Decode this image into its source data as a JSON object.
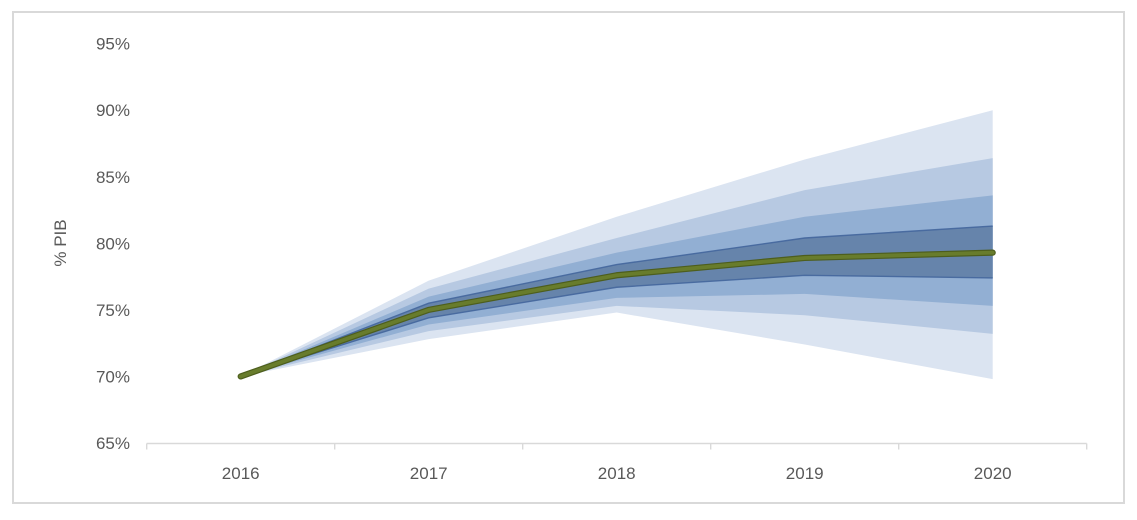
{
  "chart_data": {
    "type": "area",
    "subtype": "fan-chart",
    "title": "",
    "xlabel": "",
    "ylabel": "% PIB",
    "categories": [
      "2016",
      "2017",
      "2018",
      "2019",
      "2020"
    ],
    "ylim": [
      65,
      95
    ],
    "grid": false,
    "legend": "none",
    "yticks": [
      {
        "label": "95%",
        "value": 95
      },
      {
        "label": "90%",
        "value": 90
      },
      {
        "label": "85%",
        "value": 85
      },
      {
        "label": "80%",
        "value": 80
      },
      {
        "label": "75%",
        "value": 75
      },
      {
        "label": "70%",
        "value": 70
      },
      {
        "label": "65%",
        "value": 65
      }
    ],
    "central": {
      "name": "central-projection",
      "values": [
        70.0,
        75.0,
        77.6,
        78.9,
        79.3
      ]
    },
    "bands": [
      {
        "name": "band-outermost",
        "upper": [
          70.0,
          77.2,
          82.0,
          86.3,
          90.0
        ],
        "lower": [
          70.0,
          72.8,
          74.8,
          72.4,
          69.8
        ],
        "color_key": "band_outermost"
      },
      {
        "name": "band-outer",
        "upper": [
          70.0,
          76.6,
          80.4,
          84.0,
          86.4
        ],
        "lower": [
          70.0,
          73.4,
          75.3,
          74.6,
          73.2
        ],
        "color_key": "band_outer"
      },
      {
        "name": "band-inner",
        "upper": [
          70.0,
          76.0,
          79.3,
          82.0,
          83.6
        ],
        "lower": [
          70.0,
          73.9,
          75.9,
          76.2,
          75.3
        ],
        "color_key": "band_inner"
      },
      {
        "name": "band-innermost",
        "upper": [
          70.0,
          75.5,
          78.4,
          80.4,
          81.3
        ],
        "lower": [
          70.0,
          74.4,
          76.7,
          77.6,
          77.4
        ],
        "color_key": "band_innermost",
        "edge": true
      }
    ],
    "colors": {
      "band_outermost": "#dbe4f1",
      "band_outer": "#b7c9e2",
      "band_inner": "#92afd3",
      "band_innermost": "#6684ab",
      "band_edge": "#44669c",
      "central_line": "#687c2c",
      "central_line_edge": "#4d5e1d",
      "axis": "#d9d9d9",
      "tick": "#d9d9d9",
      "text": "#595959",
      "frame_border": "#d9d9d9",
      "background": "#ffffff"
    }
  }
}
